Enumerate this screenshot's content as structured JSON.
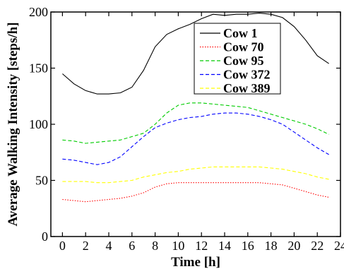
{
  "chart_data": {
    "type": "line",
    "title": "",
    "xlabel": "Time [h]",
    "ylabel": "Average Walking Intensity [steps/h]",
    "xlim": [
      -1,
      24
    ],
    "ylim": [
      0,
      200
    ],
    "x_ticks": [
      0,
      2,
      4,
      6,
      8,
      10,
      12,
      14,
      16,
      18,
      20,
      22,
      24
    ],
    "y_ticks": [
      0,
      50,
      100,
      150,
      200
    ],
    "grid": false,
    "legend_position": "top-right",
    "x": [
      0,
      1,
      2,
      3,
      4,
      5,
      6,
      7,
      8,
      9,
      10,
      11,
      12,
      13,
      14,
      15,
      16,
      17,
      18,
      19,
      20,
      21,
      22,
      23
    ],
    "series": [
      {
        "name": "Cow 1",
        "color": "#000000",
        "dash": "solid",
        "values": [
          145,
          136,
          130,
          127,
          127,
          128,
          133,
          148,
          169,
          180,
          185,
          189,
          194,
          198,
          197,
          198,
          198,
          199,
          198,
          195,
          187,
          175,
          161,
          154
        ]
      },
      {
        "name": "Cow 70",
        "color": "#ff0000",
        "dash": "dotted",
        "values": [
          33,
          32,
          31,
          32,
          33,
          34,
          36,
          39,
          44,
          47,
          48,
          48,
          48,
          48,
          48,
          48,
          48,
          48,
          47,
          46,
          43,
          40,
          37,
          35
        ]
      },
      {
        "name": "Cow 95",
        "color": "#00cc00",
        "dash": "dashed",
        "values": [
          86,
          85,
          83,
          84,
          85,
          86,
          89,
          92,
          100,
          110,
          117,
          119,
          119,
          118,
          117,
          116,
          115,
          112,
          109,
          106,
          103,
          100,
          96,
          91
        ]
      },
      {
        "name": "Cow 372",
        "color": "#0000ff",
        "dash": "dashed",
        "values": [
          69,
          68,
          66,
          64,
          66,
          71,
          80,
          89,
          97,
          101,
          104,
          106,
          107,
          109,
          110,
          110,
          109,
          107,
          104,
          100,
          93,
          86,
          79,
          73
        ]
      },
      {
        "name": "Cow 389",
        "color": "#ffff00",
        "dash": "dashed",
        "values": [
          49,
          49,
          49,
          48,
          48,
          49,
          50,
          53,
          55,
          57,
          58,
          60,
          61,
          62,
          62,
          62,
          62,
          62,
          61,
          60,
          58,
          56,
          53,
          51
        ]
      }
    ]
  }
}
